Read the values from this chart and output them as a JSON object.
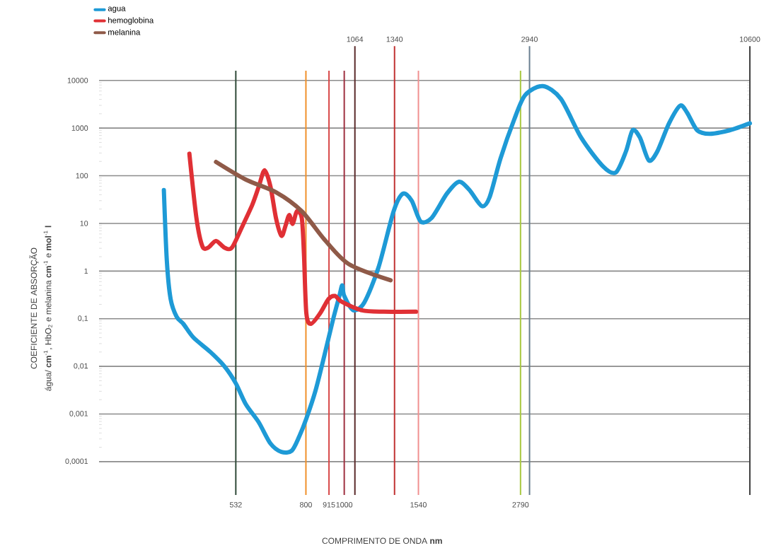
{
  "chart_data": {
    "type": "line",
    "xlabel": "COMPRIMENTO DE ONDA **nm**",
    "ylabel": "COEFICIENTE DE ABSORÇÃO",
    "annotations": [
      "água/ **cm**$^{-1}$, HbO$_{2}$ e melanina **cm**$^{-1}$ e **mol**$^{-1}$ **l**"
    ],
    "log": "xy",
    "xlim": [
      240,
      10600
    ],
    "ylim": [
      2e-05,
      16000
    ],
    "xticks": [
      532,
      800,
      915,
      1000,
      1540,
      2790
    ],
    "yticks": [
      {
        "value": 0.0001,
        "label": "0,0001"
      },
      {
        "value": 0.001,
        "label": "0,001"
      },
      {
        "value": 0.01,
        "label": "0,01"
      },
      {
        "value": 0.1,
        "label": "0,1"
      },
      1,
      10,
      100,
      1000,
      10000
    ],
    "grid": "y",
    "legend": "top left",
    "marker": "none",
    "line_style": "solid",
    "series": [
      {
        "name": "agua",
        "color": "#1e9ad6",
        "x": [
          350,
          356,
          364,
          377,
          392,
          416,
          459,
          498,
          532,
          564,
          608,
          651,
          694,
          737,
          770,
          802,
          846,
          891,
          936,
          972,
          988,
          1000,
          1055,
          1124,
          1221,
          1333,
          1407,
          1481,
          1560,
          1663,
          1817,
          1950,
          2073,
          2227,
          2329,
          2483,
          2688,
          2865,
          3176,
          3529,
          3971,
          4501,
          4855,
          5150,
          5356,
          5591,
          5886,
          6181,
          6623,
          7064,
          7359,
          7801,
          8390,
          9421,
          10600
        ],
        "values": [
          50,
          1.7,
          0.26,
          0.11,
          0.078,
          0.04,
          0.02,
          0.01,
          0.0044,
          0.0016,
          0.00067,
          0.00024,
          0.00016,
          0.00017,
          0.00034,
          0.0008,
          0.0031,
          0.017,
          0.093,
          0.3,
          0.5,
          0.3,
          0.15,
          0.22,
          1.2,
          18,
          42,
          30,
          11,
          13,
          42,
          75,
          50,
          23,
          35,
          230,
          1500,
          4900,
          7600,
          4100,
          630,
          160,
          117,
          320,
          900,
          630,
          210,
          320,
          1260,
          2950,
          2100,
          900,
          760,
          900,
          1260
        ]
      },
      {
        "name": "hemoglobina",
        "color": "#e03035",
        "x": [
          406,
          423,
          438,
          453,
          474,
          498,
          520,
          554,
          586,
          608,
          629,
          651,
          672,
          694,
          711,
          726,
          741,
          759,
          781,
          791,
          802,
          824,
          869,
          913,
          948,
          983,
          1109,
          1258,
          1518
        ],
        "values": [
          290,
          13,
          3.3,
          3.1,
          4.3,
          3.1,
          3.1,
          9.1,
          25,
          59,
          130,
          59,
          13,
          5.5,
          9.1,
          15,
          9.8,
          18,
          13,
          2.3,
          0.13,
          0.078,
          0.13,
          0.26,
          0.3,
          0.23,
          0.15,
          0.14,
          0.14
        ]
      },
      {
        "name": "melanina",
        "color": "#8f5a48",
        "x": [
          474,
          564,
          672,
          781,
          891,
          1027,
          1310
        ],
        "values": [
          195,
          83,
          45,
          18,
          4.6,
          1.4,
          0.64
        ]
      }
    ],
    "ref_lines": [
      {
        "axis": "x",
        "value": 532,
        "color": "#2f4a38"
      },
      {
        "axis": "x",
        "value": 800,
        "color": "#f0902a"
      },
      {
        "axis": "x",
        "value": 915,
        "color": "#d84848"
      },
      {
        "axis": "x",
        "value": 1000,
        "color": "#9e3040"
      },
      {
        "axis": "x",
        "value": 1064,
        "color": "#5a2a2a",
        "label": "1064"
      },
      {
        "axis": "x",
        "value": 1340,
        "color": "#c03030",
        "label": "1340"
      },
      {
        "axis": "x",
        "value": 1540,
        "color": "#f09090"
      },
      {
        "axis": "x",
        "value": 2790,
        "color": "#a8c840"
      },
      {
        "axis": "x",
        "value": 2940,
        "color": "#6a7f90",
        "label": "2940"
      },
      {
        "axis": "x",
        "value": 10600,
        "color": "#404040",
        "label": "10600"
      }
    ]
  }
}
